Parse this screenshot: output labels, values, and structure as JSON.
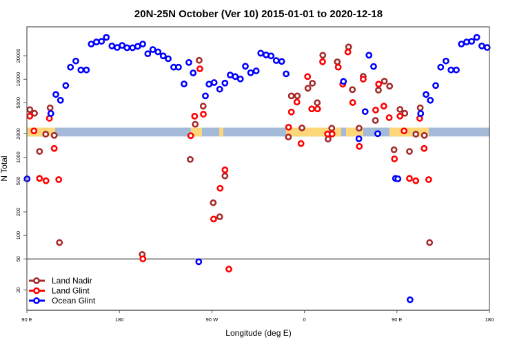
{
  "chart_data": {
    "type": "scatter",
    "title": "20N-25N October (Ver 10)   2015-01-01 to 2020-12-18",
    "xlabel": "Longitude (deg E)",
    "ylabel": "N Total",
    "x_units": "longitude degrees, unwrapped (90 = 90E, 180 = 180, 270 = 90W, 360 = 0, 450 = 90E, 540 = 180)",
    "xlim": [
      90,
      540
    ],
    "ylim": [
      11,
      48000
    ],
    "yscale": "log",
    "x_ticks": [
      {
        "value": 90,
        "label": "90 E"
      },
      {
        "value": 180,
        "label": "180"
      },
      {
        "value": 270,
        "label": "90 W"
      },
      {
        "value": 360,
        "label": "0"
      },
      {
        "value": 450,
        "label": "90 E"
      },
      {
        "value": 540,
        "label": "180"
      }
    ],
    "y_ticks": [
      {
        "value": 20,
        "label": "20"
      },
      {
        "value": 50,
        "label": "50"
      },
      {
        "value": 100,
        "label": "100"
      },
      {
        "value": 200,
        "label": "200"
      },
      {
        "value": 500,
        "label": "500"
      },
      {
        "value": 1000,
        "label": "1000"
      },
      {
        "value": 2000,
        "label": "2000"
      },
      {
        "value": 5000,
        "label": "5000"
      },
      {
        "value": 10000,
        "label": "10000"
      },
      {
        "value": 20000,
        "label": "20000"
      }
    ],
    "reference_line": {
      "y": 50
    },
    "legend": {
      "placement": "bottom-left"
    },
    "surface_band": {
      "y_range": [
        1850,
        2400
      ],
      "ocean_color": "#a3bbd9",
      "land_color": "#fdd77a",
      "land_segments": [
        [
          90,
          117.5
        ],
        [
          249.6,
          260.3
        ],
        [
          277.1,
          281.1
        ],
        [
          342.2,
          395.8
        ],
        [
          400.5,
          417.2
        ],
        [
          442.7,
          480.9
        ]
      ]
    },
    "series": [
      {
        "name": "Land Nadir",
        "color": "#a52a2a",
        "points": [
          [
            92.9,
            4080
          ],
          [
            97.4,
            3660
          ],
          [
            102.3,
            1190
          ],
          [
            108.3,
            1980
          ],
          [
            112.6,
            4300
          ],
          [
            116.6,
            1910
          ],
          [
            121.7,
            81
          ],
          [
            202.2,
            57
          ],
          [
            248.9,
            940
          ],
          [
            253.8,
            2650
          ],
          [
            257.6,
            17460
          ],
          [
            261.5,
            4520
          ],
          [
            271.3,
            262
          ],
          [
            277.6,
            173
          ],
          [
            282.7,
            578
          ],
          [
            344.4,
            1820
          ],
          [
            347.3,
            6120
          ],
          [
            353.1,
            6120
          ],
          [
            357.6,
            2380
          ],
          [
            363.4,
            7660
          ],
          [
            367.8,
            8890
          ],
          [
            372.5,
            5000
          ],
          [
            377.9,
            20300
          ],
          [
            383.0,
            1710
          ],
          [
            386.6,
            2360
          ],
          [
            392.0,
            16700
          ],
          [
            403.0,
            25900
          ],
          [
            406.7,
            7360
          ],
          [
            413.2,
            2360
          ],
          [
            417.2,
            10890
          ],
          [
            429.1,
            2970
          ],
          [
            432.0,
            7250
          ],
          [
            437.8,
            9440
          ],
          [
            442.9,
            8150
          ],
          [
            447.2,
            1250
          ],
          [
            453.0,
            4110
          ],
          [
            457.7,
            3660
          ],
          [
            462.2,
            1190
          ],
          [
            468.4,
            1980
          ],
          [
            472.7,
            4300
          ],
          [
            476.7,
            1910
          ],
          [
            481.8,
            81
          ]
        ]
      },
      {
        "name": "Land Glint",
        "color": "#ff0000",
        "points": [
          [
            92.9,
            3370
          ],
          [
            96.9,
            2180
          ],
          [
            102.3,
            537
          ],
          [
            108.6,
            501
          ],
          [
            111.9,
            3160
          ],
          [
            116.6,
            1300
          ],
          [
            121.0,
            519
          ],
          [
            202.9,
            50
          ],
          [
            249.4,
            1890
          ],
          [
            253.2,
            3360
          ],
          [
            261.7,
            3570
          ],
          [
            258.3,
            13600
          ],
          [
            271.7,
            162
          ],
          [
            278.0,
            401
          ],
          [
            282.7,
            690
          ],
          [
            286.5,
            37
          ],
          [
            344.6,
            2430
          ],
          [
            347.3,
            3810
          ],
          [
            352.7,
            5100
          ],
          [
            356.7,
            1500
          ],
          [
            363.1,
            10810
          ],
          [
            367.1,
            4170
          ],
          [
            372.8,
            4170
          ],
          [
            377.7,
            16750
          ],
          [
            382.6,
            1990
          ],
          [
            386.9,
            1990
          ],
          [
            392.9,
            14260
          ],
          [
            397.3,
            8650
          ],
          [
            402.3,
            22300
          ],
          [
            407.0,
            5030
          ],
          [
            413.4,
            1380
          ],
          [
            417.2,
            10020
          ],
          [
            429.3,
            4030
          ],
          [
            432.2,
            8650
          ],
          [
            437.3,
            4520
          ],
          [
            442.5,
            3220
          ],
          [
            447.6,
            955
          ],
          [
            453.0,
            3370
          ],
          [
            457.0,
            2180
          ],
          [
            462.2,
            537
          ],
          [
            468.4,
            501
          ],
          [
            472.2,
            3160
          ],
          [
            476.5,
            1300
          ],
          [
            480.9,
            519
          ]
        ]
      },
      {
        "name": "Ocean Glint",
        "color": "#0000ff",
        "points": [
          [
            90.2,
            530
          ],
          [
            113.3,
            3640
          ],
          [
            118.2,
            6380
          ],
          [
            122.7,
            5380
          ],
          [
            127.8,
            8310
          ],
          [
            132.4,
            14260
          ],
          [
            137.6,
            17100
          ],
          [
            142.5,
            13140
          ],
          [
            147.9,
            13140
          ],
          [
            152.6,
            28250
          ],
          [
            157.7,
            30000
          ],
          [
            162.6,
            30600
          ],
          [
            167.3,
            34400
          ],
          [
            172.7,
            26700
          ],
          [
            177.8,
            25500
          ],
          [
            182.7,
            27100
          ],
          [
            187.4,
            25300
          ],
          [
            192.8,
            25300
          ],
          [
            197.8,
            26400
          ],
          [
            202.7,
            28250
          ],
          [
            207.6,
            21200
          ],
          [
            212.5,
            24000
          ],
          [
            217.6,
            22400
          ],
          [
            222.6,
            19900
          ],
          [
            227.5,
            18300
          ],
          [
            232.8,
            14260
          ],
          [
            237.5,
            14260
          ],
          [
            242.9,
            8710
          ],
          [
            247.6,
            16400
          ],
          [
            251.8,
            12050
          ],
          [
            257.2,
            46
          ],
          [
            263.7,
            6120
          ],
          [
            267.2,
            8650
          ],
          [
            272.2,
            9060
          ],
          [
            277.6,
            7450
          ],
          [
            282.7,
            8930
          ],
          [
            287.8,
            11330
          ],
          [
            292.7,
            10810
          ],
          [
            297.7,
            10090
          ],
          [
            302.6,
            14660
          ],
          [
            307.7,
            12110
          ],
          [
            313.1,
            12790
          ],
          [
            317.5,
            21560
          ],
          [
            322.7,
            20500
          ],
          [
            327.6,
            19870
          ],
          [
            332.6,
            17340
          ],
          [
            337.9,
            16900
          ],
          [
            342.2,
            11720
          ],
          [
            398.0,
            9380
          ],
          [
            413.0,
            1730
          ],
          [
            419.1,
            3850
          ],
          [
            422.8,
            20300
          ],
          [
            427.3,
            14550
          ],
          [
            431.3,
            2010
          ],
          [
            448.6,
            537
          ],
          [
            451.0,
            530
          ],
          [
            462.8,
            15
          ],
          [
            473.1,
            3640
          ],
          [
            478.3,
            6380
          ],
          [
            482.5,
            5380
          ],
          [
            487.7,
            8310
          ],
          [
            492.6,
            14260
          ],
          [
            497.7,
            17100
          ],
          [
            502.6,
            13140
          ],
          [
            507.8,
            13140
          ],
          [
            512.7,
            28250
          ],
          [
            517.8,
            30000
          ],
          [
            522.7,
            30600
          ],
          [
            527.7,
            34400
          ],
          [
            532.6,
            26700
          ],
          [
            537.8,
            25500
          ]
        ]
      }
    ]
  }
}
